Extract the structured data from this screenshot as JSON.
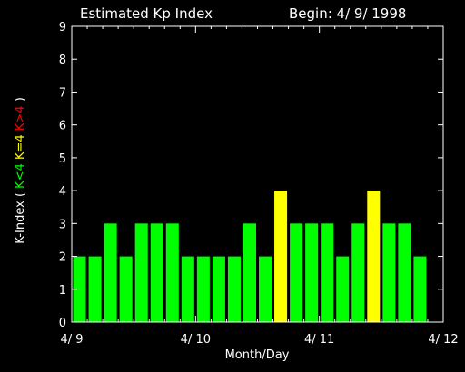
{
  "chart_data": {
    "type": "bar",
    "title": "Estimated Kp Index",
    "begin_label": "Begin: 4/ 9/ 1998",
    "xlabel": "Month/Day",
    "ylabel": {
      "prefix": "K-Index ( ",
      "low": "K<4",
      "mid": "K=4",
      "high": "K>4",
      "suffix": " )"
    },
    "ylim": [
      0,
      9
    ],
    "yticks": [
      "0",
      "1",
      "2",
      "3",
      "4",
      "5",
      "6",
      "7",
      "8",
      "9"
    ],
    "xtick_labels": [
      "4/ 9",
      "4/ 10",
      "4/ 11",
      "4/ 12"
    ],
    "x_range_days": 3,
    "values": [
      2,
      2,
      3,
      2,
      3,
      3,
      3,
      2,
      2,
      2,
      2,
      3,
      2,
      4,
      3,
      3,
      3,
      2,
      3,
      4,
      3,
      3,
      2
    ],
    "colors": {
      "low": "#00ff00",
      "mid": "#ffff00",
      "high": "#ff0000",
      "axis": "#ffffff",
      "background": "#000000"
    }
  }
}
